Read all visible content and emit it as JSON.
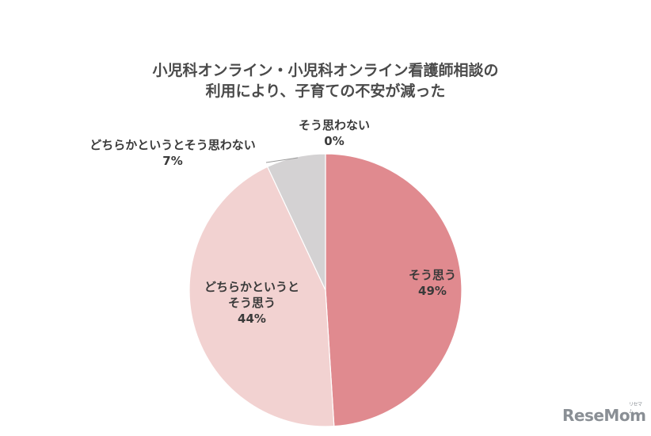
{
  "chart_data": {
    "type": "pie",
    "title_lines": [
      "小児科オンライン・小児科オンライン看護師相談の",
      "利用により、子育ての不安が減った"
    ],
    "slices": [
      {
        "label_lines": [
          "そう思う"
        ],
        "value": 49,
        "value_label": "49%",
        "color": "#e08a8f"
      },
      {
        "label_lines": [
          "どちらかというと",
          "そう思う"
        ],
        "value": 44,
        "value_label": "44%",
        "color": "#f2d2d1"
      },
      {
        "label_lines": [
          "どちらかというとそう思わない"
        ],
        "value": 7,
        "value_label": "7%",
        "color": "#d4d2d3"
      },
      {
        "label_lines": [
          "そう思わない"
        ],
        "value": 0,
        "value_label": "0%",
        "color": "#bdbcbc"
      }
    ],
    "legend": "none"
  },
  "watermark": {
    "text": "ReseMom",
    "sub": "リセマム"
  }
}
